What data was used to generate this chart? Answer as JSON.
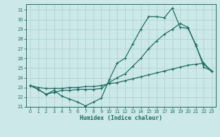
{
  "xlabel": "Humidex (Indice chaleur)",
  "ylabel": "",
  "bg_color": "#cce8e8",
  "line_color": "#1e6b62",
  "grid_color": "#aad0d0",
  "xlim": [
    -0.5,
    23.5
  ],
  "ylim": [
    21.0,
    31.6
  ],
  "yticks": [
    21,
    22,
    23,
    24,
    25,
    26,
    27,
    28,
    29,
    30,
    31
  ],
  "xticks": [
    0,
    1,
    2,
    3,
    4,
    5,
    6,
    7,
    8,
    9,
    10,
    11,
    12,
    13,
    14,
    15,
    16,
    17,
    18,
    19,
    20,
    21,
    22,
    23
  ],
  "line1_x": [
    0,
    1,
    2,
    3,
    4,
    5,
    6,
    7,
    8,
    9,
    10,
    11,
    12,
    13,
    14,
    15,
    16,
    17,
    18,
    19,
    20,
    21,
    22,
    23
  ],
  "line1_y": [
    23.2,
    22.8,
    22.3,
    22.7,
    22.1,
    21.8,
    21.5,
    21.1,
    21.5,
    21.9,
    23.8,
    25.5,
    26.0,
    27.5,
    29.0,
    30.3,
    30.3,
    30.2,
    31.2,
    29.2,
    29.1,
    27.4,
    25.1,
    24.7
  ],
  "line2_x": [
    0,
    1,
    2,
    3,
    4,
    5,
    6,
    7,
    8,
    9,
    10,
    11,
    12,
    13,
    14,
    15,
    16,
    17,
    18,
    19,
    20,
    21,
    22,
    23
  ],
  "line2_y": [
    23.2,
    22.8,
    22.3,
    22.5,
    22.7,
    22.7,
    22.8,
    22.8,
    22.8,
    22.9,
    23.5,
    24.0,
    24.4,
    25.2,
    26.0,
    27.0,
    27.8,
    28.5,
    29.0,
    29.6,
    29.2,
    27.3,
    25.4,
    24.7
  ],
  "line3_x": [
    0,
    1,
    2,
    3,
    4,
    5,
    6,
    7,
    8,
    9,
    10,
    11,
    12,
    13,
    14,
    15,
    16,
    17,
    18,
    19,
    20,
    21,
    22,
    23
  ],
  "line3_y": [
    23.2,
    23.0,
    22.9,
    22.9,
    22.9,
    23.0,
    23.0,
    23.1,
    23.1,
    23.2,
    23.4,
    23.5,
    23.7,
    23.9,
    24.1,
    24.3,
    24.5,
    24.7,
    24.9,
    25.1,
    25.3,
    25.4,
    25.5,
    24.7
  ]
}
